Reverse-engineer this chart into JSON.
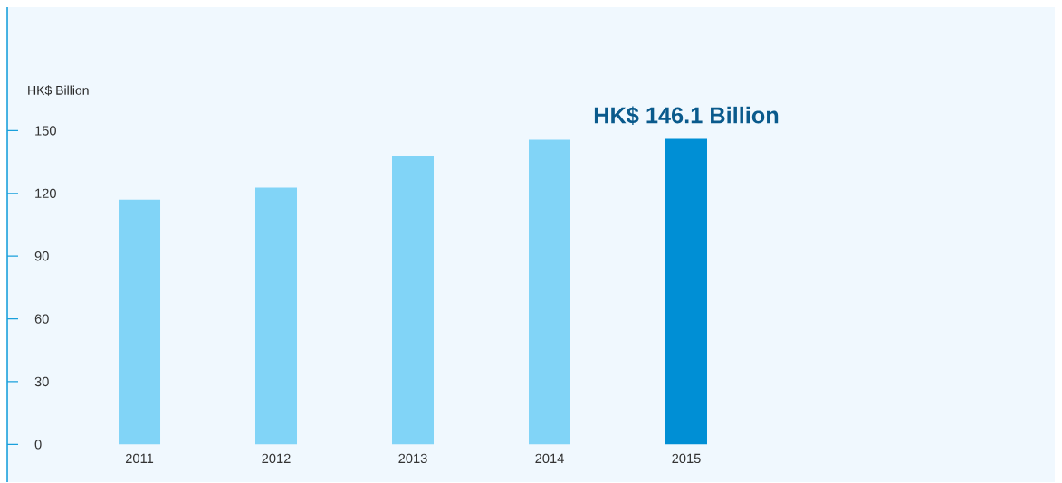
{
  "chart_data": {
    "type": "bar",
    "ylabel": "HK$ Billion",
    "categories": [
      "2011",
      "2012",
      "2013",
      "2014",
      "2015"
    ],
    "values": [
      117.0,
      122.7,
      138.1,
      145.6,
      146.1
    ],
    "colors": [
      "#81d4f7",
      "#81d4f7",
      "#81d4f7",
      "#81d4f7",
      "#008fd5"
    ],
    "ylim": [
      -18,
      209
    ],
    "yticks": [
      0,
      30,
      60,
      90,
      120,
      150
    ],
    "grid": false,
    "annotations": [
      {
        "text": "HK$ 146.1 Billion",
        "x": "2015",
        "y": 146.1
      }
    ]
  }
}
